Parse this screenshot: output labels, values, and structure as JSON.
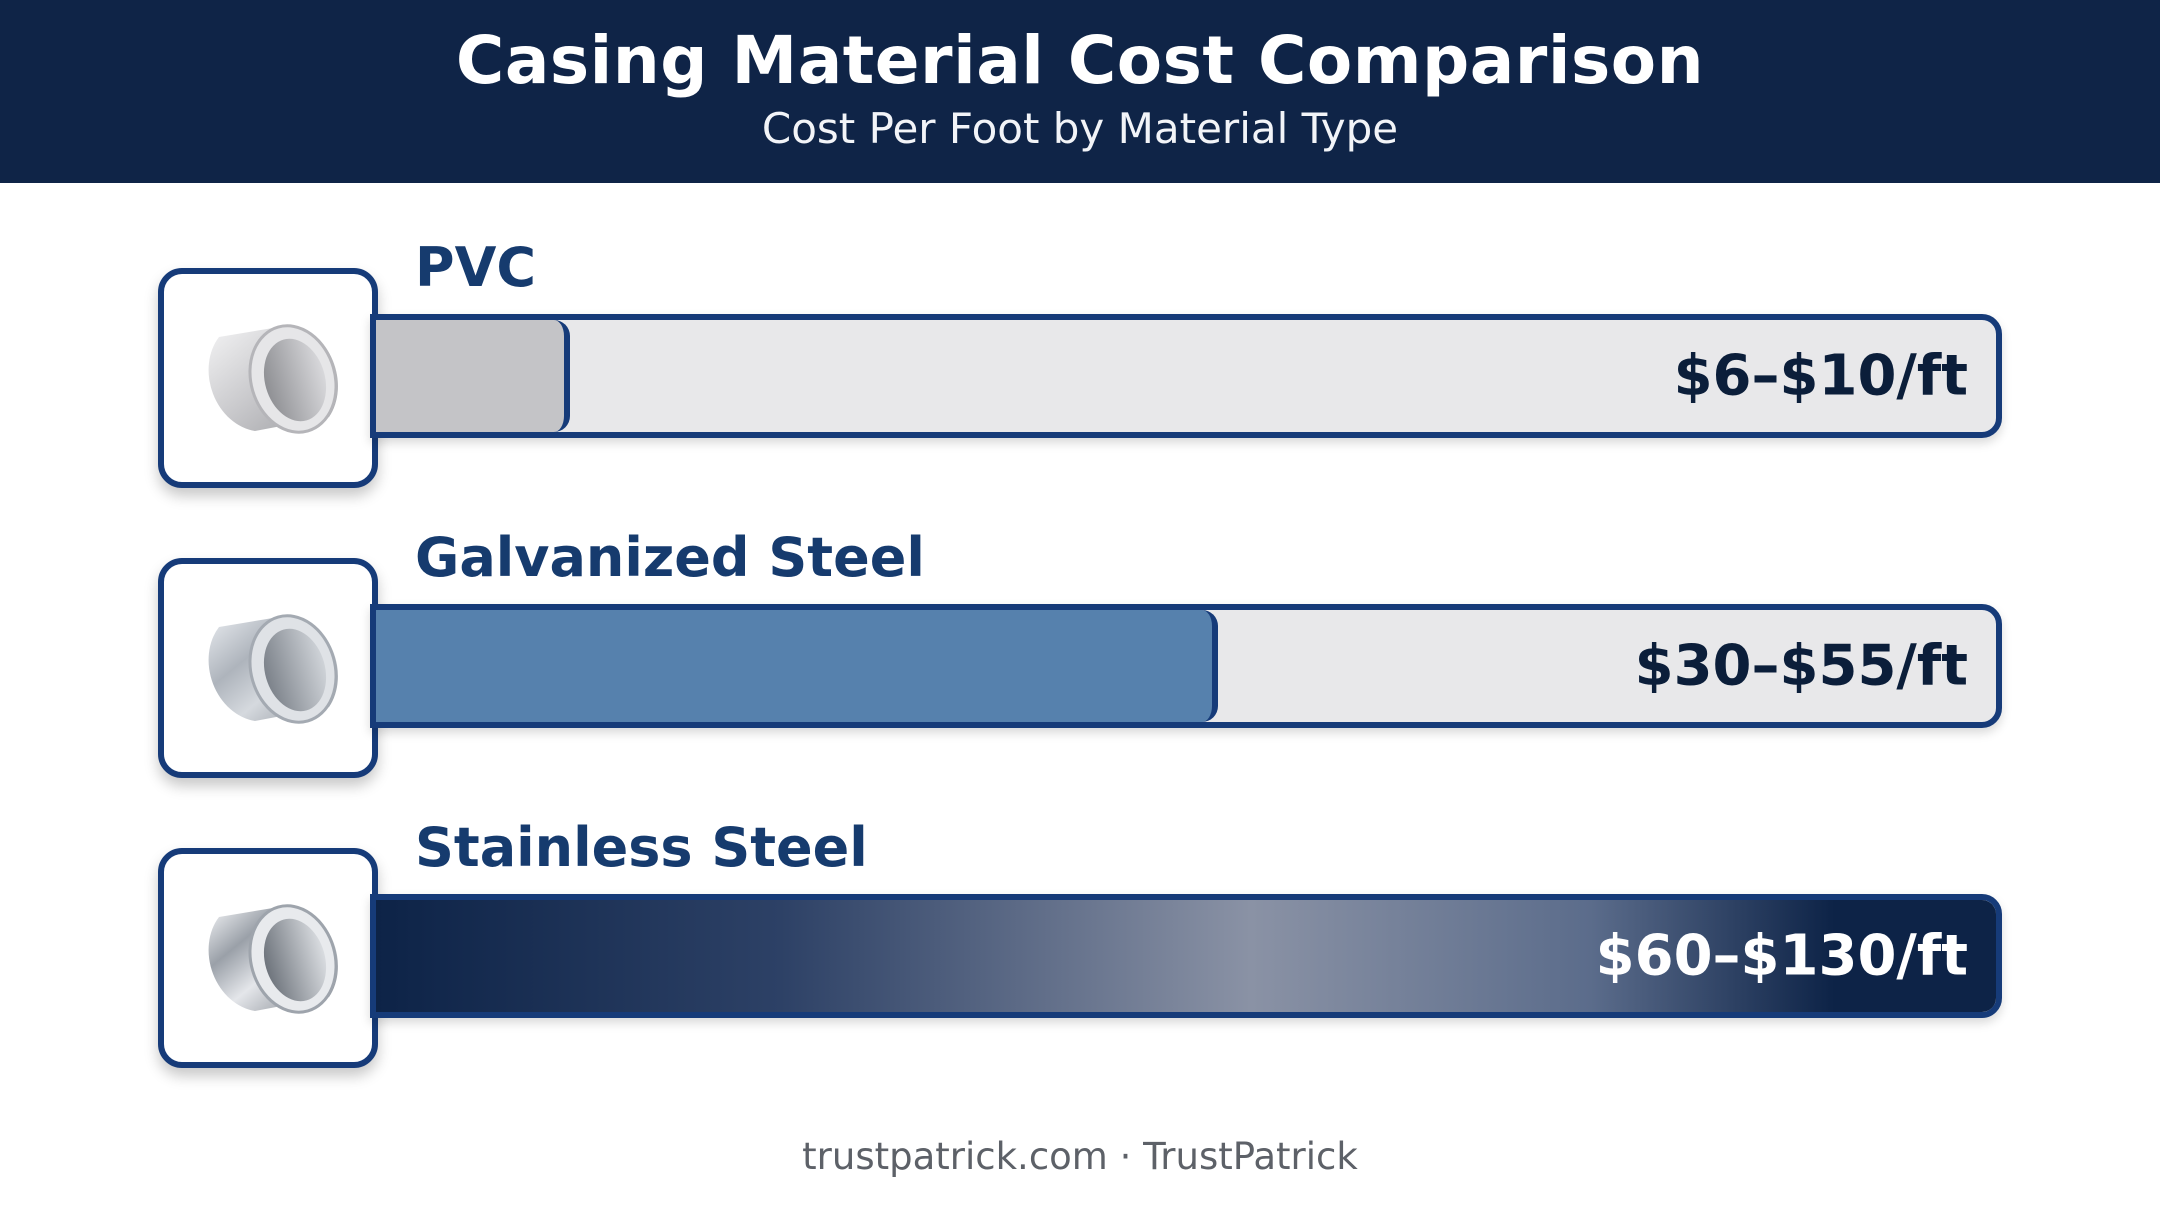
{
  "header": {
    "title": "Casing Material Cost Comparison",
    "subtitle": "Cost Per Foot by Material Type"
  },
  "materials": [
    {
      "label": "PVC",
      "value_text": "$6–$10/ft",
      "icon": "pvc-pipe-icon"
    },
    {
      "label": "Galvanized Steel",
      "value_text": "$30–$55/ft",
      "icon": "galvanized-pipe-icon"
    },
    {
      "label": "Stainless Steel",
      "value_text": "$60–$130/ft",
      "icon": "stainless-pipe-icon"
    }
  ],
  "chart_data": {
    "type": "bar",
    "orientation": "horizontal",
    "title": "Casing Material Cost Comparison",
    "subtitle": "Cost Per Foot by Material Type",
    "categories": [
      "PVC",
      "Galvanized Steel",
      "Stainless Steel"
    ],
    "ranges": [
      [
        6,
        10
      ],
      [
        30,
        55
      ],
      [
        60,
        130
      ]
    ],
    "value_labels": [
      "$6–$10/ft",
      "$30–$55/ft",
      "$60–$130/ft"
    ],
    "bar_fill_fraction": [
      0.12,
      0.52,
      1.0
    ],
    "colors": [
      "#c4c4c7",
      "#5681ad",
      "#1b2f55"
    ],
    "track_color": "#e8e8ea",
    "border_color": "#163b79",
    "header_color": "#0f2447"
  },
  "footer": {
    "text": "trustpatrick.com · TrustPatrick"
  }
}
